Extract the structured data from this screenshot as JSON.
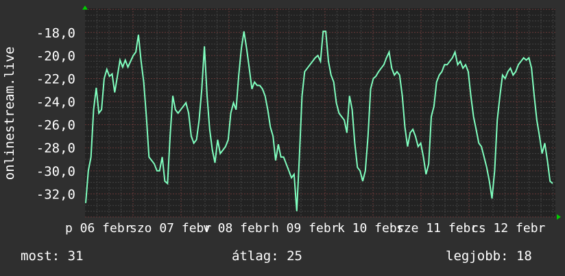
{
  "chart_data": {
    "type": "line",
    "ylabel": "onlinestream.live",
    "ylim": [
      -34.0,
      -15.9
    ],
    "y_ticks": [
      "-18,0",
      "-20,0",
      "-22,0",
      "-24,0",
      "-26,0",
      "-28,0",
      "-30,0",
      "-32,0"
    ],
    "y_tick_values": [
      -18,
      -20,
      -22,
      -24,
      -26,
      -28,
      -30,
      -32
    ],
    "x_tick_labels": [
      "p 06 febr",
      "szo 07 febr",
      "v 08 febr",
      "h 09 febr",
      "k 10 febr",
      "sze 11 febr",
      "cs 12 febr"
    ],
    "grid": true,
    "line_color": "#80ffbf",
    "values": [
      -32.8,
      -30.0,
      -28.8,
      -24.7,
      -22.8,
      -25.0,
      -24.7,
      -22.0,
      -21.2,
      -21.8,
      -21.6,
      -23.2,
      -21.8,
      -20.4,
      -21.0,
      -20.4,
      -21.0,
      -20.5,
      -20.0,
      -19.7,
      -18.2,
      -20.5,
      -22.3,
      -25.3,
      -28.8,
      -29.1,
      -29.4,
      -30.0,
      -30.0,
      -28.8,
      -30.9,
      -31.1,
      -27.0,
      -23.5,
      -24.7,
      -25.0,
      -24.7,
      -24.4,
      -24.1,
      -25.0,
      -27.0,
      -27.6,
      -27.3,
      -25.6,
      -22.9,
      -19.2,
      -23.5,
      -26.4,
      -28.2,
      -29.3,
      -27.3,
      -28.5,
      -28.2,
      -27.9,
      -27.3,
      -25.0,
      -24.1,
      -24.7,
      -21.7,
      -19.4,
      -17.9,
      -19.4,
      -21.1,
      -22.9,
      -22.3,
      -22.6,
      -22.6,
      -22.9,
      -23.5,
      -24.7,
      -26.2,
      -27.0,
      -29.1,
      -27.7,
      -28.8,
      -28.8,
      -29.4,
      -30.0,
      -30.6,
      -30.3,
      -33.5,
      -28.8,
      -23.5,
      -21.4,
      -21.1,
      -20.8,
      -20.5,
      -20.2,
      -20.0,
      -20.5,
      -17.9,
      -17.9,
      -20.5,
      -21.7,
      -22.3,
      -24.1,
      -25.0,
      -25.3,
      -25.6,
      -26.7,
      -23.5,
      -24.7,
      -27.6,
      -29.7,
      -30.0,
      -30.9,
      -30.0,
      -27.0,
      -22.9,
      -22.0,
      -21.8,
      -21.4,
      -21.1,
      -20.8,
      -20.2,
      -19.7,
      -21.1,
      -21.7,
      -21.4,
      -21.7,
      -23.5,
      -26.2,
      -27.9,
      -26.7,
      -26.4,
      -27.0,
      -27.9,
      -27.6,
      -28.8,
      -30.3,
      -29.4,
      -25.3,
      -24.4,
      -22.3,
      -21.7,
      -21.4,
      -20.8,
      -20.8,
      -20.5,
      -20.2,
      -19.7,
      -20.8,
      -20.5,
      -21.1,
      -20.8,
      -21.4,
      -23.5,
      -25.3,
      -26.4,
      -27.6,
      -27.9,
      -28.8,
      -29.7,
      -30.9,
      -32.4,
      -30.0,
      -25.6,
      -23.5,
      -21.7,
      -22.0,
      -21.4,
      -21.1,
      -21.7,
      -21.4,
      -20.8,
      -20.5,
      -20.2,
      -20.4,
      -20.2,
      -21.1,
      -23.5,
      -25.6,
      -27.0,
      -28.5,
      -27.6,
      -29.1,
      -30.9,
      -31.1
    ]
  },
  "footer": {
    "current": "most: 31",
    "average": "átlag: 25",
    "max": "legjobb: 18"
  }
}
